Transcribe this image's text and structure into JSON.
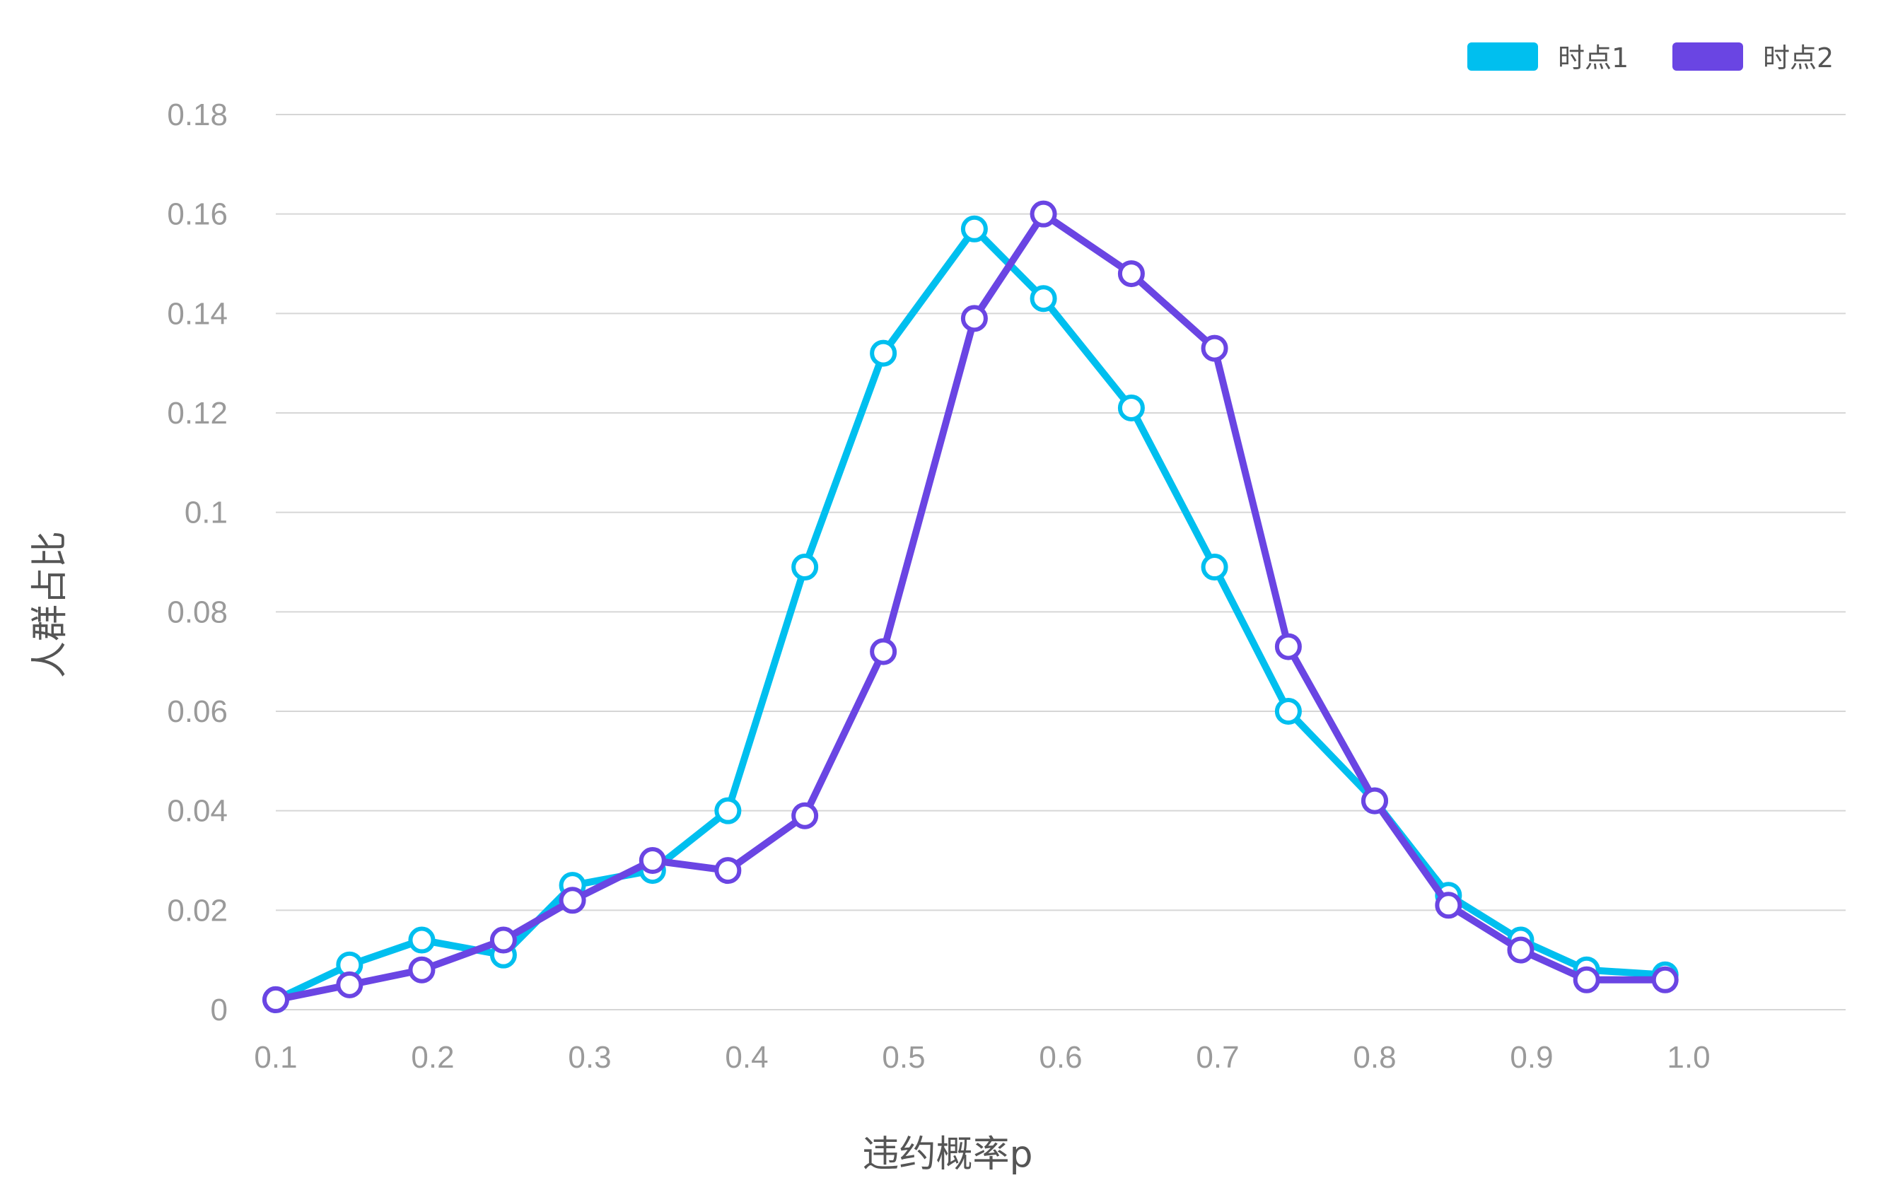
{
  "chart_data": {
    "type": "line",
    "xlabel": "违约概率p",
    "ylabel": "人群占比",
    "xlim": [
      0.1,
      1.1
    ],
    "ylim": [
      0,
      0.18
    ],
    "x_ticks": [
      "0.1",
      "0.2",
      "0.3",
      "0.4",
      "0.5",
      "0.6",
      "0.7",
      "0.8",
      "0.9",
      "1.0"
    ],
    "y_ticks": [
      "0",
      "0.02",
      "0.04",
      "0.06",
      "0.08",
      "0.1",
      "0.12",
      "0.14",
      "0.16",
      "0.18"
    ],
    "grid": true,
    "legend_position": "top-right",
    "series": [
      {
        "name": "时点1",
        "color": "#00BFEF",
        "x": [
          0.1,
          0.147,
          0.193,
          0.245,
          0.289,
          0.34,
          0.388,
          0.437,
          0.487,
          0.545,
          0.589,
          0.645,
          0.698,
          0.745,
          0.8,
          0.847,
          0.893,
          0.935,
          0.985
        ],
        "y": [
          0.002,
          0.009,
          0.014,
          0.011,
          0.025,
          0.028,
          0.04,
          0.089,
          0.132,
          0.157,
          0.143,
          0.121,
          0.089,
          0.06,
          0.042,
          0.023,
          0.014,
          0.008,
          0.007
        ]
      },
      {
        "name": "时点2",
        "color": "#6A45E3",
        "x": [
          0.1,
          0.147,
          0.193,
          0.245,
          0.289,
          0.34,
          0.388,
          0.437,
          0.487,
          0.545,
          0.589,
          0.645,
          0.698,
          0.745,
          0.8,
          0.847,
          0.893,
          0.935,
          0.985
        ],
        "y": [
          0.002,
          0.005,
          0.008,
          0.014,
          0.022,
          0.03,
          0.028,
          0.039,
          0.072,
          0.139,
          0.16,
          0.148,
          0.133,
          0.073,
          0.042,
          0.021,
          0.012,
          0.006,
          0.006
        ]
      }
    ]
  }
}
